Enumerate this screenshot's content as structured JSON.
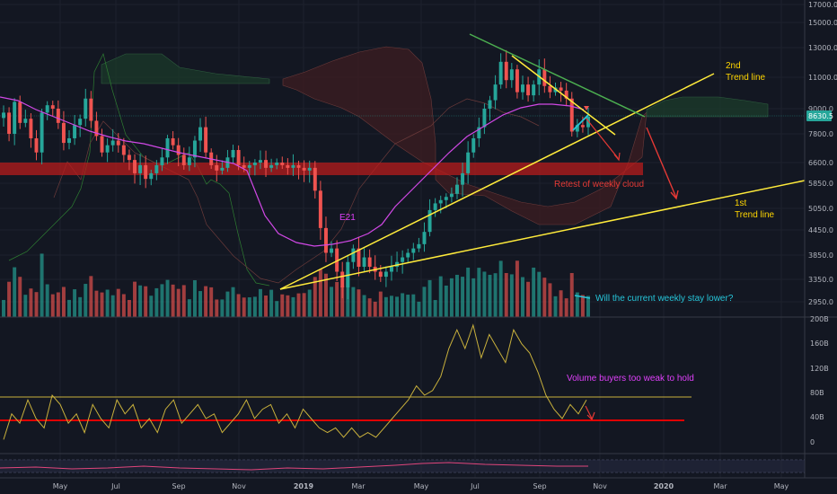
{
  "chart_data": {
    "type": "candlestick",
    "price_axis": {
      "scale": "log",
      "ticks": [
        "17000.0",
        "15000.0",
        "13000.0",
        "11000.0",
        "9000.0",
        "7800.0",
        "6600.0",
        "5850.0",
        "5050.0",
        "4450.0",
        "3850.0",
        "3350.0",
        "2950.0"
      ],
      "current_price_label": "8630.5",
      "last_price": 8630.5
    },
    "oscillator_axis": {
      "ticks": [
        "200B",
        "160B",
        "120B",
        "80B",
        "40B",
        "0"
      ],
      "level_line": 75,
      "support_line": 33
    },
    "x_axis": {
      "ticks": [
        {
          "label": "May",
          "bold": false
        },
        {
          "label": "Jul",
          "bold": false
        },
        {
          "label": "Sep",
          "bold": false
        },
        {
          "label": "Nov",
          "bold": false
        },
        {
          "label": "2019",
          "bold": true
        },
        {
          "label": "Mar",
          "bold": false
        },
        {
          "label": "May",
          "bold": false
        },
        {
          "label": "Jul",
          "bold": false
        },
        {
          "label": "Sep",
          "bold": false
        },
        {
          "label": "Nov",
          "bold": false
        },
        {
          "label": "2020",
          "bold": true
        },
        {
          "label": "Mar",
          "bold": false
        },
        {
          "label": "May",
          "bold": false
        }
      ]
    },
    "close_prices": [
      8800,
      7800,
      9400,
      8300,
      8500,
      7600,
      7000,
      8800,
      9200,
      9000,
      8300,
      7400,
      7600,
      8200,
      8500,
      9600,
      8400,
      7700,
      7000,
      7300,
      7500,
      7300,
      6900,
      6700,
      6200,
      6500,
      6000,
      6200,
      6500,
      6800,
      7600,
      7300,
      6900,
      6500,
      6800,
      7500,
      8100,
      7000,
      6500,
      6300,
      6400,
      6800,
      7100,
      6500,
      6400,
      6500,
      6600,
      6700,
      6400,
      6500,
      6600,
      6500,
      6400,
      6500,
      6400,
      6300,
      6400,
      5600,
      4500,
      3900,
      4000,
      3500,
      3200,
      3700,
      4000,
      3600,
      3800,
      3600,
      3500,
      3400,
      3500,
      3600,
      3700,
      3800,
      3900,
      4000,
      4100,
      4400,
      5000,
      5200,
      5300,
      5400,
      5500,
      5800,
      6200,
      7000,
      7600,
      8100,
      9000,
      9500,
      10500,
      12000,
      10800,
      11500,
      10000,
      10500,
      9800,
      10500,
      11500,
      10400,
      10000,
      10300,
      10100,
      9600,
      7900,
      8200,
      8100,
      8600
    ],
    "volume_axis": "Volume",
    "ma_label": "E21",
    "annotations": [
      {
        "text": "2nd",
        "color": "#ffd600"
      },
      {
        "text": "Trend line",
        "color": "#ffd600"
      },
      {
        "text": "1st",
        "color": "#ffd600"
      },
      {
        "text": "Trend line",
        "color": "#ffd600"
      },
      {
        "text": "Retest of weekly cloud",
        "color": "#e53935"
      },
      {
        "text": "E21",
        "color": "#e040fb"
      },
      {
        "text": "Will the current weekly stay lower?",
        "color": "#26c6da"
      },
      {
        "text": "Volume buyers too weak to hold",
        "color": "#e040fb"
      }
    ],
    "colors": {
      "background": "#131722",
      "bull": "#26a69a",
      "bear": "#ef5350",
      "trend_lines": "#ffeb3b",
      "resistance_line": "#4caf50",
      "ma": "#d148e6",
      "support_zone": "#b71c1c",
      "oscillator": "#c9b13c"
    }
  }
}
